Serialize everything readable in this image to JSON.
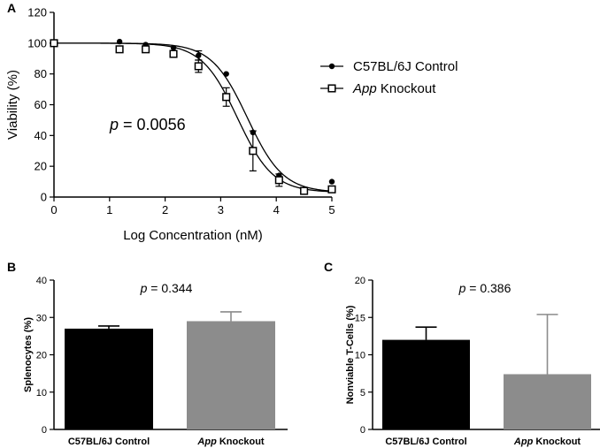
{
  "chart_data": [
    {
      "panel": "A",
      "type": "scatter",
      "xlabel": "Log Concentration (nM)",
      "ylabel": "Viability (%)",
      "xlim": [
        0,
        5
      ],
      "ylim": [
        0,
        120
      ],
      "xticks": [
        "0",
        "1",
        "2",
        "3",
        "4",
        "5"
      ],
      "yticks": [
        "0",
        "20",
        "40",
        "60",
        "80",
        "100",
        "120"
      ],
      "annotation": {
        "italic": "p",
        "rest": " = 0.0056"
      },
      "series": [
        {
          "name": "C57BL/6J Control",
          "marker": "filled-circle",
          "x": [
            0,
            1.18,
            1.65,
            2.15,
            2.6,
            3.1,
            3.58,
            4.05,
            4.5,
            5
          ],
          "values": [
            100,
            101,
            99,
            97,
            92,
            80,
            42,
            14,
            5,
            10
          ],
          "err": [
            0,
            0,
            0,
            0,
            3,
            0,
            0,
            0,
            0,
            0
          ],
          "curve": {
            "top": 100,
            "bottom": 3,
            "logIC50": 3.48,
            "hill": 1.35
          }
        },
        {
          "name": "App Knockout",
          "name_italic": "App",
          "name_rest": " Knockout",
          "marker": "open-square",
          "x": [
            0,
            1.18,
            1.65,
            2.15,
            2.6,
            3.1,
            3.58,
            4.05,
            4.5,
            5
          ],
          "values": [
            100,
            96,
            96,
            93,
            85,
            65,
            30,
            11,
            4,
            5
          ],
          "err": [
            0,
            0,
            0,
            0,
            4,
            6,
            13,
            4,
            1,
            0
          ],
          "curve": {
            "top": 100,
            "bottom": 3,
            "logIC50": 3.3,
            "hill": 1.35
          }
        }
      ]
    },
    {
      "panel": "B",
      "type": "bar",
      "ylabel": "Splenocytes (%)",
      "ylim": [
        0,
        40
      ],
      "yticks": [
        "0",
        "10",
        "20",
        "30",
        "40"
      ],
      "categories": [
        {
          "plain": "C57BL/6J Control",
          "italic": "",
          "rest": ""
        },
        {
          "plain": "",
          "italic": "App",
          "rest": " Knockout"
        }
      ],
      "values": [
        27,
        29
      ],
      "err": [
        0.7,
        2.5
      ],
      "colors": [
        "#000000",
        "#8c8c8c"
      ],
      "annotation": {
        "italic": "p",
        "rest": " = 0.344"
      }
    },
    {
      "panel": "C",
      "type": "bar",
      "ylabel": "Nonviable T-Cells (%)",
      "ylim": [
        0,
        20
      ],
      "yticks": [
        "0",
        "5",
        "10",
        "15",
        "20"
      ],
      "categories": [
        {
          "plain": "C57BL/6J Control",
          "italic": "",
          "rest": ""
        },
        {
          "plain": "",
          "italic": "App",
          "rest": " Knockout"
        }
      ],
      "values": [
        12,
        7.4
      ],
      "err": [
        1.7,
        8
      ],
      "colors": [
        "#000000",
        "#8c8c8c"
      ],
      "annotation": {
        "italic": "p",
        "rest": " = 0.386"
      }
    }
  ]
}
